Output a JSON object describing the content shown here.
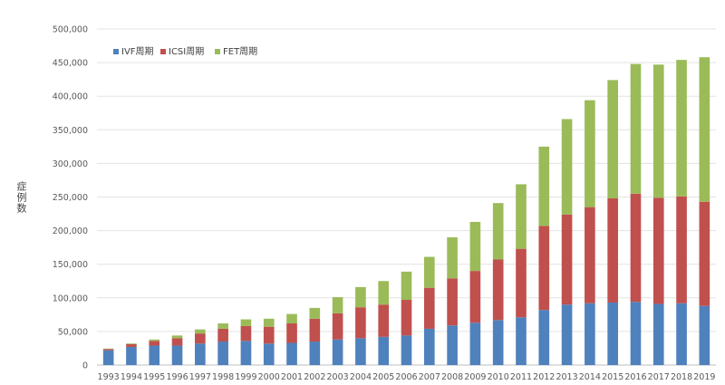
{
  "chart_data": {
    "type": "bar",
    "stacked": true,
    "title": "",
    "xlabel": "",
    "ylabel": "症例数",
    "ylim": [
      0,
      500000
    ],
    "yticks": [
      "0",
      "50,000",
      "100,000",
      "150,000",
      "200,000",
      "250,000",
      "300,000",
      "350,000",
      "400,000",
      "450,000",
      "500,000"
    ],
    "grid": true,
    "legend_position": "top-left",
    "categories": [
      "1993",
      "1994",
      "1995",
      "1996",
      "1997",
      "1998",
      "1999",
      "2000",
      "2001",
      "2002",
      "2003",
      "2004",
      "2005",
      "2006",
      "2007",
      "2008",
      "2009",
      "2010",
      "2011",
      "2012",
      "2013",
      "2014",
      "2015",
      "2016",
      "2017",
      "2018",
      "2019"
    ],
    "series": [
      {
        "name": "IVF周期",
        "color": "#4f81bd",
        "values": [
          22000,
          27000,
          29000,
          29000,
          32000,
          35000,
          36000,
          32000,
          33000,
          35000,
          38000,
          40000,
          42000,
          44000,
          54000,
          59000,
          63000,
          67000,
          71000,
          82000,
          90000,
          92000,
          93000,
          94000,
          91000,
          92000,
          88000
        ]
      },
      {
        "name": "ICSI周期",
        "color": "#c0504d",
        "values": [
          2000,
          4000,
          7000,
          11000,
          15000,
          19000,
          22000,
          25000,
          29000,
          34000,
          39000,
          46000,
          48000,
          53000,
          61000,
          70000,
          77000,
          90000,
          102000,
          125000,
          134000,
          143000,
          155000,
          161000,
          158000,
          159000,
          155000
        ]
      },
      {
        "name": "FET周期",
        "color": "#9bbb59",
        "values": [
          500,
          1000,
          2000,
          4000,
          6000,
          8000,
          10000,
          12000,
          14000,
          16000,
          24000,
          30000,
          35000,
          42000,
          46000,
          61000,
          73000,
          84000,
          96000,
          118000,
          142000,
          159000,
          176000,
          193000,
          198000,
          203000,
          215000
        ]
      }
    ]
  }
}
